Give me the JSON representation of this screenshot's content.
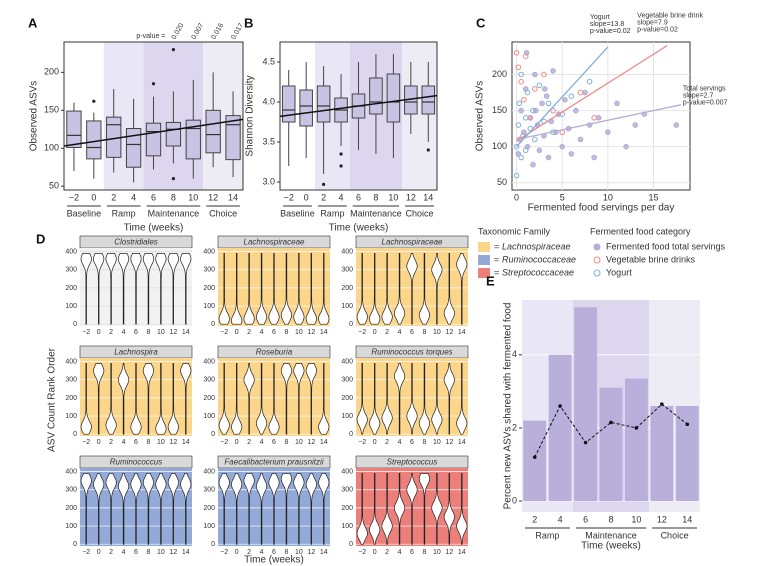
{
  "chart_data": [
    {
      "type": "box",
      "panel": "A",
      "ylabel": "Observed ASVs",
      "xlabel": "Time (weeks)",
      "categories": [
        "−2",
        "0",
        "2",
        "4",
        "6",
        "8",
        "10",
        "12",
        "14"
      ],
      "groups": [
        "Baseline",
        "Baseline",
        "Ramp",
        "Ramp",
        "Maintenance",
        "Maintenance",
        "Maintenance",
        "Choice",
        "Choice"
      ],
      "group_colors": [
        null,
        "#e9e6f5",
        "#dcd7ef",
        "#edecf5"
      ],
      "ylim": [
        45,
        240
      ],
      "yticks": [
        50,
        100,
        150,
        200
      ],
      "boxes": [
        {
          "low": 70,
          "q1": 101,
          "median": 117,
          "q3": 149,
          "high": 160,
          "outliers": []
        },
        {
          "low": 60,
          "q1": 86,
          "median": 101,
          "q3": 136,
          "high": 147,
          "outliers": [
            162
          ]
        },
        {
          "low": 68,
          "q1": 88,
          "median": 131,
          "q3": 141,
          "high": 178,
          "outliers": []
        },
        {
          "low": 55,
          "q1": 75,
          "median": 105,
          "q3": 126,
          "high": 165,
          "outliers": []
        },
        {
          "low": 72,
          "q1": 90,
          "median": 122,
          "q3": 133,
          "high": 168,
          "outliers": [
            185
          ]
        },
        {
          "low": 80,
          "q1": 103,
          "median": 125,
          "q3": 134,
          "high": 175,
          "outliers": [
            230,
            60
          ]
        },
        {
          "low": 60,
          "q1": 86,
          "median": 126,
          "q3": 137,
          "high": 190,
          "outliers": []
        },
        {
          "low": 75,
          "q1": 94,
          "median": 118,
          "q3": 150,
          "high": 200,
          "outliers": []
        },
        {
          "low": 62,
          "q1": 85,
          "median": 131,
          "q3": 143,
          "high": 175,
          "outliers": []
        }
      ],
      "trend": [
        103,
        138
      ],
      "pvalue_label": "p-value =",
      "p_values": [
        null,
        null,
        null,
        null,
        null,
        "0.020",
        "0.007",
        "0.016",
        "0.017"
      ]
    },
    {
      "type": "box",
      "panel": "B",
      "ylabel": "Shannon Diversity",
      "xlabel": "Time (weeks)",
      "categories": [
        "−2",
        "0",
        "2",
        "4",
        "6",
        "8",
        "10",
        "12",
        "14"
      ],
      "groups": [
        "Baseline",
        "Baseline",
        "Ramp",
        "Ramp",
        "Maintenance",
        "Maintenance",
        "Maintenance",
        "Choice",
        "Choice"
      ],
      "group_colors": [
        null,
        "#e9e6f5",
        "#dcd7ef",
        "#edecf5"
      ],
      "ylim": [
        2.9,
        4.75
      ],
      "yticks": [
        {
          "value": 3,
          "label": "3.0"
        },
        3.5,
        {
          "value": 4,
          "label": "4.0"
        },
        4.5
      ],
      "boxes": [
        {
          "low": 3.2,
          "q1": 3.75,
          "median": 3.9,
          "q3": 4.2,
          "high": 4.4,
          "outliers": []
        },
        {
          "low": 3.3,
          "q1": 3.7,
          "median": 3.95,
          "q3": 4.15,
          "high": 4.5,
          "outliers": []
        },
        {
          "low": 3.1,
          "q1": 3.75,
          "median": 3.95,
          "q3": 4.2,
          "high": 4.45,
          "outliers": [
            2.97
          ]
        },
        {
          "low": 3.45,
          "q1": 3.75,
          "median": 3.9,
          "q3": 4.05,
          "high": 4.35,
          "outliers": [
            3.35,
            3.2
          ]
        },
        {
          "low": 3.4,
          "q1": 3.8,
          "median": 3.95,
          "q3": 4.1,
          "high": 4.5,
          "outliers": []
        },
        {
          "low": 3.35,
          "q1": 3.85,
          "median": 4.0,
          "q3": 4.3,
          "high": 4.6,
          "outliers": []
        },
        {
          "low": 3.3,
          "q1": 3.75,
          "median": 4.0,
          "q3": 4.35,
          "high": 4.6,
          "outliers": []
        },
        {
          "low": 3.6,
          "q1": 3.85,
          "median": 4.0,
          "q3": 4.2,
          "high": 4.5,
          "outliers": []
        },
        {
          "low": 3.5,
          "q1": 3.85,
          "median": 4.0,
          "q3": 4.2,
          "high": 4.5,
          "outliers": [
            3.4
          ]
        }
      ],
      "trend": [
        3.82,
        4.08
      ]
    },
    {
      "type": "scatter",
      "panel": "C",
      "ylabel": "Observed ASVs",
      "xlabel": "Fermented food servings per day",
      "xlim": [
        -0.5,
        19
      ],
      "xticks": [
        0,
        5,
        10,
        15
      ],
      "ylim": [
        40,
        245
      ],
      "yticks": [
        50,
        100,
        150,
        200
      ],
      "grid": true,
      "legend_title": "Fermented food category",
      "series": [
        {
          "name": "Fermented food total servings",
          "color": "#b3acd6",
          "marker": "filled",
          "x": [
            0.2,
            0.5,
            0.8,
            1,
            1.2,
            1.5,
            1.8,
            2,
            2.3,
            2.5,
            2.8,
            3,
            3.3,
            3.5,
            3.8,
            4,
            4.3,
            4.6,
            5,
            5.3,
            5.7,
            6,
            6.5,
            7,
            7.5,
            8,
            8.5,
            9,
            10,
            11,
            12,
            13,
            14,
            17.5,
            0.3,
            1.1,
            2.1,
            3.1
          ],
          "y": [
            90,
            150,
            120,
            180,
            100,
            140,
            75,
            200,
            130,
            95,
            160,
            115,
            170,
            85,
            135,
            205,
            120,
            145,
            100,
            165,
            125,
            90,
            150,
            110,
            175,
            130,
            85,
            140,
            120,
            160,
            100,
            130,
            145,
            130,
            110,
            230,
            150,
            180
          ],
          "fit": {
            "x": [
              0,
              18
            ],
            "y": [
              110,
              158
            ]
          },
          "annotation": [
            "Total servings",
            "slope=2.7",
            "p-value=0.007"
          ]
        },
        {
          "name": "Vegetable brine drinks",
          "color": "#f08a8a",
          "marker": "open",
          "x": [
            0,
            0.2,
            0.5,
            0.8,
            1,
            1.5,
            2,
            3,
            4,
            5,
            7,
            8.5
          ],
          "y": [
            230,
            210,
            190,
            165,
            225,
            140,
            180,
            200,
            150,
            120,
            175,
            140
          ],
          "fit": {
            "x": [
              0,
              16.5
            ],
            "y": [
              108,
              240
            ]
          },
          "annotation": [
            "Vegetable brine drink",
            "slope=7.9",
            "p-value=0.02"
          ]
        },
        {
          "name": "Yogurt",
          "color": "#7fb0d8",
          "marker": "open",
          "x": [
            0,
            0,
            0.2,
            0.3,
            0.5,
            0.5,
            0.7,
            1,
            1,
            1.2,
            1.5,
            1.8,
            2,
            2.5,
            3,
            3.5,
            4,
            5,
            6,
            8
          ],
          "y": [
            60,
            100,
            130,
            160,
            85,
            200,
            115,
            140,
            95,
            175,
            125,
            150,
            110,
            185,
            135,
            160,
            120,
            145,
            170,
            190
          ],
          "fit": {
            "x": [
              0,
              10
            ],
            "y": [
              100,
              238
            ]
          },
          "annotation": [
            "Yogurt",
            "slope=13.8",
            "p-value=0.02"
          ]
        }
      ]
    },
    {
      "type": "violin",
      "panel": "D",
      "ylabel": "ASV Count Rank Order",
      "xlabel": "Time (weeks)",
      "categories": [
        "−2",
        "0",
        "2",
        "4",
        "6",
        "8",
        "10",
        "12",
        "14"
      ],
      "ylim": [
        -10,
        420
      ],
      "yticks": [
        0,
        100,
        200,
        300,
        400
      ],
      "legend_title": "Taxonomic Family",
      "legend_prefix": "=",
      "families": [
        {
          "name": "Lachnospiraceae",
          "color": "#fbd58a"
        },
        {
          "name": "Ruminococcaceae",
          "color": "#93aad8"
        },
        {
          "name": "Streptococcaceae",
          "color": "#ec7f7a"
        }
      ],
      "facets": [
        {
          "title": "Clostridiales",
          "family": null,
          "values": [
            360,
            360,
            360,
            360,
            360,
            360,
            360,
            360,
            360
          ]
        },
        {
          "title": "Lachnospiraceae",
          "family": "Lachnospiraceae",
          "values": [
            30,
            20,
            30,
            40,
            40,
            50,
            40,
            30,
            30
          ]
        },
        {
          "title": "Lachnospiraceae",
          "family": "Lachnospiraceae",
          "values": [
            40,
            30,
            40,
            60,
            320,
            50,
            300,
            60,
            330
          ]
        },
        {
          "title": "Lachnospira",
          "family": "Lachnospiraceae",
          "values": [
            40,
            350,
            50,
            300,
            40,
            350,
            30,
            40,
            350
          ]
        },
        {
          "title": "Roseburia",
          "family": "Lachnospiraceae",
          "values": [
            50,
            40,
            300,
            60,
            40,
            350,
            350,
            350,
            40
          ]
        },
        {
          "title": "Ruminococcus torques",
          "family": "Lachnospiraceae",
          "values": [
            80,
            60,
            90,
            320,
            100,
            60,
            80,
            300,
            60
          ]
        },
        {
          "title": "Ruminococcus",
          "family": "Ruminococcaceae",
          "values": [
            350,
            330,
            340,
            320,
            330,
            340,
            330,
            340,
            330
          ]
        },
        {
          "title": "Faecalibacterium prausnitzii",
          "family": "Ruminococcaceae",
          "values": [
            340,
            330,
            350,
            320,
            340,
            360,
            340,
            330,
            340
          ]
        },
        {
          "title": "Streptococcus",
          "family": "Streptococcaceae",
          "values": [
            60,
            80,
            100,
            200,
            300,
            360,
            200,
            150,
            100
          ]
        }
      ]
    },
    {
      "type": "bar_line",
      "panel": "E",
      "ylabel": "Percent new ASVs shared with fermented food",
      "xlabel": "Time (weeks)",
      "categories": [
        "2",
        "4",
        "6",
        "8",
        "10",
        "12",
        "14"
      ],
      "groups": [
        "Ramp",
        "Ramp",
        "Maintenance",
        "Maintenance",
        "Maintenance",
        "Choice",
        "Choice"
      ],
      "group_colors": [
        "#e9e6f5",
        "#dcd7ef",
        "#edecf5"
      ],
      "ylim": [
        -0.3,
        5.5
      ],
      "yticks": [
        0,
        2,
        4
      ],
      "bars": {
        "color": "#b8b0da",
        "values": [
          2.2,
          4.0,
          5.3,
          3.1,
          3.35,
          2.6,
          2.6
        ]
      },
      "line": {
        "color": "#111111",
        "values": [
          1.2,
          2.6,
          1.6,
          2.15,
          2.0,
          2.65,
          2.1
        ]
      }
    }
  ]
}
